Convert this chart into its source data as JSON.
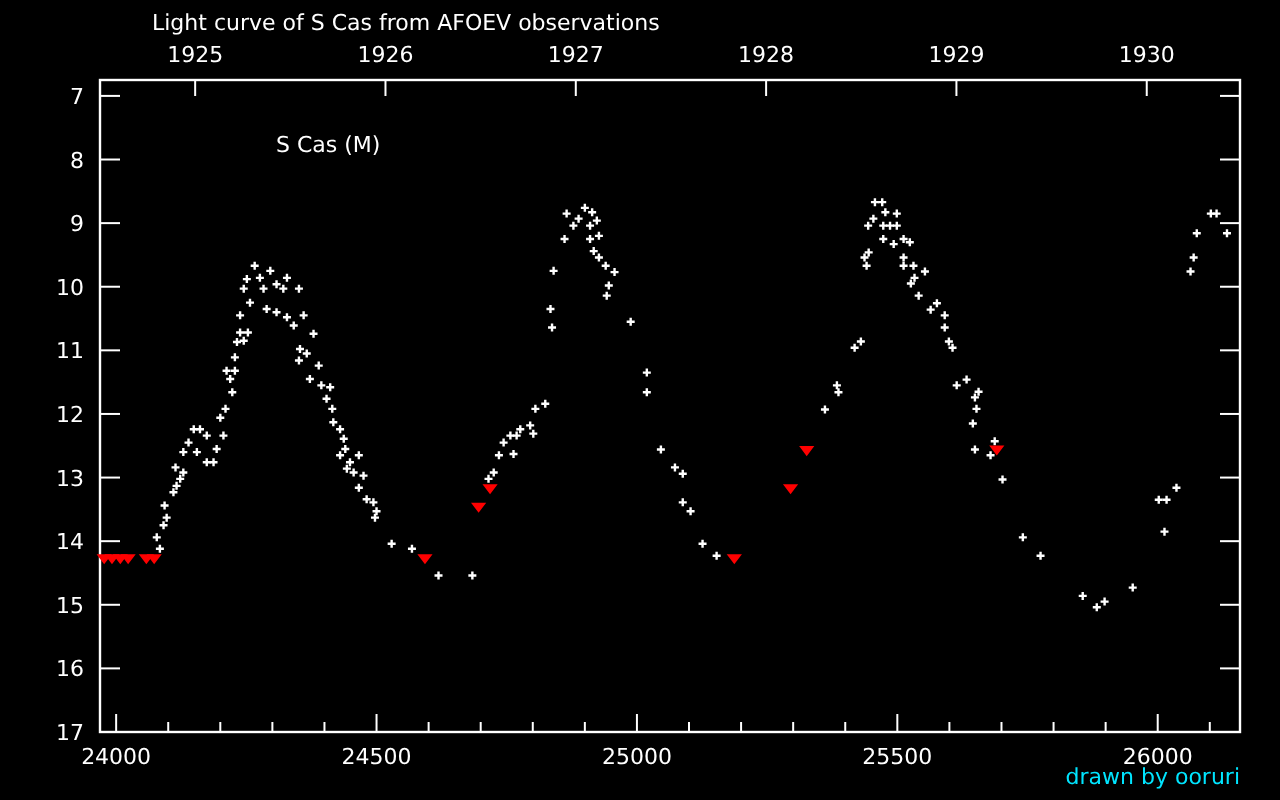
{
  "chart_data": {
    "type": "scatter",
    "title": "Light curve of S Cas from AFOEV observations",
    "annotations": [
      "S Cas (M)",
      "drawn by ooruri"
    ],
    "xlim": [
      23969,
      26158
    ],
    "xticks": [
      24000,
      {
        "value": 24100,
        "label": null
      },
      {
        "value": 24200,
        "label": null
      },
      {
        "value": 24300,
        "label": null
      },
      {
        "value": 24400,
        "label": null
      },
      24500,
      {
        "value": 24600,
        "label": null
      },
      {
        "value": 24700,
        "label": null
      },
      {
        "value": 24800,
        "label": null
      },
      {
        "value": 24900,
        "label": null
      },
      25000,
      {
        "value": 25100,
        "label": null
      },
      {
        "value": 25200,
        "label": null
      },
      {
        "value": 25300,
        "label": null
      },
      {
        "value": 25400,
        "label": null
      },
      25500,
      {
        "value": 25600,
        "label": null
      },
      {
        "value": 25700,
        "label": null
      },
      {
        "value": 25800,
        "label": null
      },
      {
        "value": 25900,
        "label": null
      },
      26000,
      {
        "value": 26100,
        "label": null
      }
    ],
    "x2lim": [
      1924.5,
      1930.49
    ],
    "x2ticks": [
      1925,
      1926,
      1927,
      1928,
      1929,
      1930
    ],
    "ylim": [
      17,
      6.75
    ],
    "yticks": [
      7,
      8,
      9,
      10,
      11,
      12,
      13,
      14,
      15,
      16,
      17
    ],
    "grid": false,
    "series": [
      {
        "color": "#ffffff",
        "marker": "cross",
        "x": [
          24084,
          24078,
          24091,
          24097,
          24093,
          24110,
          24116,
          24114,
          24123,
          24129,
          24129,
          24139,
          24149,
          24161,
          24174,
          24155,
          24174,
          24187,
          24193,
          24206,
          24200,
          24210,
          24223,
          24212,
          24228,
          24219,
          24228,
          24232,
          24238,
          24245,
          24238,
          24253,
          24257,
          24245,
          24251,
          24266,
          24276,
          24283,
          24296,
          24308,
          24328,
          24289,
          24308,
          24328,
          24321,
          24351,
          24341,
          24360,
          24379,
          24353,
          24366,
          24351,
          24389,
          24372,
          24394,
          24411,
          24404,
          24415,
          24417,
          24430,
          24437,
          24440,
          24430,
          24449,
          24466,
          24443,
          24456,
          24475,
          24466,
          24481,
          24494,
          24500,
          24497,
          24529,
          24568,
          24619,
          24684,
          24715,
          24725,
          24735,
          24744,
          24763,
          24757,
          24769,
          24776,
          24795,
          24801,
          24805,
          24824,
          24837,
          24834,
          24840,
          24861,
          24865,
          24878,
          24888,
          24900,
          24914,
          24910,
          24923,
          24910,
          24927,
          24917,
          24927,
          24940,
          24957,
          24946,
          24942,
          24988,
          25019,
          25019,
          25046,
          25073,
          25088,
          25088,
          25103,
          25126,
          25153,
          25361,
          25384,
          25387,
          25418,
          25430,
          25441,
          25437,
          25445,
          25444,
          25454,
          25457,
          25471,
          25477,
          25473,
          25486,
          25499,
          25499,
          25473,
          25493,
          25512,
          25524,
          25512,
          25512,
          25531,
          25533,
          25526,
          25553,
          25541,
          25576,
          25564,
          25591,
          25591,
          25599,
          25606,
          25633,
          25614,
          25656,
          25649,
          25652,
          25645,
          25687,
          25649,
          25679,
          25702,
          25741,
          25775,
          25856,
          25883,
          25898,
          25952,
          26002,
          26017,
          26013,
          26036,
          26063,
          26069,
          26075,
          26102,
          26113,
          26133
        ],
        "values": [
          14.12,
          13.94,
          13.75,
          13.63,
          13.44,
          13.23,
          13.13,
          12.84,
          13.02,
          12.92,
          12.6,
          12.45,
          12.24,
          12.24,
          12.34,
          12.6,
          12.76,
          12.76,
          12.55,
          12.34,
          12.06,
          11.92,
          11.66,
          11.32,
          11.32,
          11.45,
          11.11,
          10.87,
          10.72,
          10.85,
          10.45,
          10.72,
          10.25,
          10.03,
          9.88,
          9.67,
          9.86,
          10.03,
          9.75,
          9.96,
          9.86,
          10.35,
          10.4,
          10.48,
          10.03,
          10.03,
          10.61,
          10.45,
          10.74,
          10.98,
          11.05,
          11.16,
          11.24,
          11.45,
          11.55,
          11.58,
          11.76,
          11.92,
          12.13,
          12.24,
          12.39,
          12.55,
          12.65,
          12.76,
          12.65,
          12.86,
          12.92,
          12.97,
          13.16,
          13.34,
          13.39,
          13.53,
          13.63,
          14.04,
          14.12,
          14.54,
          14.54,
          13.02,
          12.92,
          12.65,
          12.45,
          12.63,
          12.34,
          12.34,
          12.24,
          12.18,
          12.31,
          11.92,
          11.84,
          10.64,
          10.35,
          9.75,
          9.25,
          8.85,
          9.04,
          8.93,
          8.76,
          8.83,
          9.04,
          8.96,
          9.25,
          9.2,
          9.44,
          9.54,
          9.67,
          9.77,
          9.98,
          10.14,
          10.55,
          11.35,
          11.66,
          12.56,
          12.84,
          12.94,
          13.39,
          13.53,
          14.04,
          14.23,
          11.93,
          11.55,
          11.66,
          10.96,
          10.86,
          9.67,
          9.54,
          9.46,
          9.04,
          8.93,
          8.67,
          8.67,
          8.83,
          9.04,
          9.04,
          8.85,
          9.04,
          9.25,
          9.33,
          9.25,
          9.3,
          9.54,
          9.67,
          9.67,
          9.86,
          9.95,
          9.76,
          10.14,
          10.26,
          10.36,
          10.45,
          10.64,
          10.86,
          10.96,
          11.46,
          11.55,
          11.65,
          11.74,
          11.92,
          12.15,
          12.43,
          12.56,
          12.65,
          13.03,
          13.94,
          14.23,
          14.86,
          15.04,
          14.95,
          14.73,
          13.35,
          13.35,
          13.85,
          13.16,
          9.76,
          9.54,
          9.16,
          8.85,
          8.85,
          9.16
        ]
      },
      {
        "color": "#ff0000",
        "marker": "triangle",
        "x": [
          23977,
          23992,
          24008,
          24023,
          24058,
          24073,
          24593,
          24696,
          24718,
          25187,
          25295,
          25326,
          25691
        ],
        "values": [
          14.28,
          14.28,
          14.28,
          14.28,
          14.28,
          14.28,
          14.28,
          13.47,
          13.18,
          14.28,
          13.18,
          12.58,
          12.57
        ]
      }
    ]
  }
}
